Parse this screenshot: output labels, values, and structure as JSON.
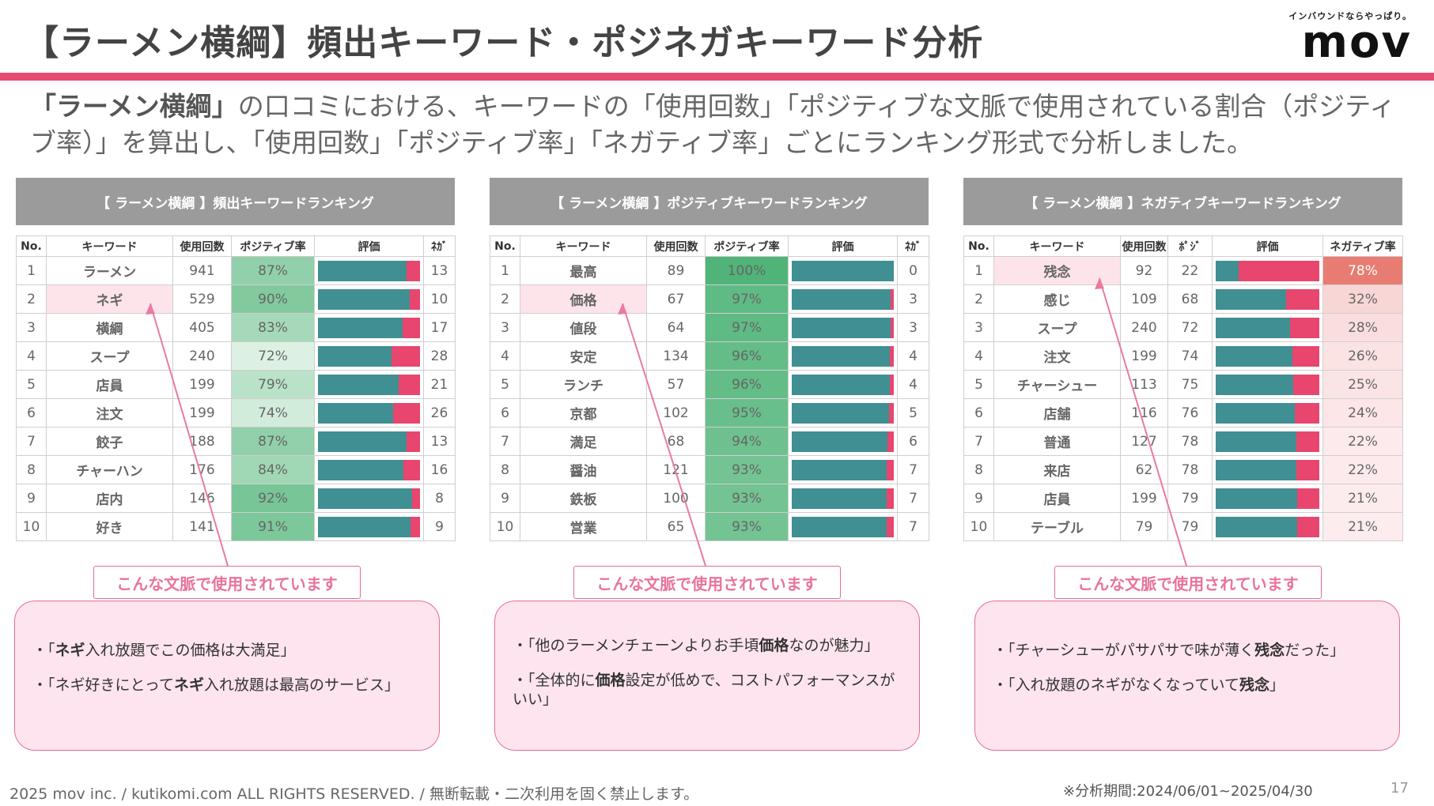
{
  "header": {
    "title": "【ラーメン横綱】頻出キーワード・ポジネガキーワード分析",
    "logo_tagline": "インバウンドならやっぱり。",
    "logo": "mov"
  },
  "lead": {
    "bold": "「ラーメン横綱」",
    "text": "の口コミにおける、キーワードの「使用回数」「ポジティブな文脈で使用されている割合（ポジティブ率）」を算出し、「使用回数」「ポジティブ率」「ネガティブ率」ごとにランキング形式で分析しました。"
  },
  "tables": [
    {
      "title": "【 ラーメン横綱 】頻出キーワードランキング",
      "columns": [
        "No.",
        "キーワード",
        "使用回数",
        "ポジティブ率",
        "評価",
        "ﾈｶﾞ"
      ],
      "rows": [
        {
          "no": "1",
          "kw": "ラーメン",
          "count": "941",
          "rate": "87%",
          "side": "13",
          "pos": 87
        },
        {
          "no": "2",
          "kw": "ネギ",
          "count": "529",
          "rate": "90%",
          "side": "10",
          "pos": 90
        },
        {
          "no": "3",
          "kw": "横綱",
          "count": "405",
          "rate": "83%",
          "side": "17",
          "pos": 83
        },
        {
          "no": "4",
          "kw": "スープ",
          "count": "240",
          "rate": "72%",
          "side": "28",
          "pos": 72
        },
        {
          "no": "5",
          "kw": "店員",
          "count": "199",
          "rate": "79%",
          "side": "21",
          "pos": 79
        },
        {
          "no": "6",
          "kw": "注文",
          "count": "199",
          "rate": "74%",
          "side": "26",
          "pos": 74
        },
        {
          "no": "7",
          "kw": "餃子",
          "count": "188",
          "rate": "87%",
          "side": "13",
          "pos": 87
        },
        {
          "no": "8",
          "kw": "チャーハン",
          "count": "176",
          "rate": "84%",
          "side": "16",
          "pos": 84
        },
        {
          "no": "9",
          "kw": "店内",
          "count": "146",
          "rate": "92%",
          "side": "8",
          "pos": 92
        },
        {
          "no": "10",
          "kw": "好き",
          "count": "141",
          "rate": "91%",
          "side": "9",
          "pos": 91
        }
      ],
      "context_label": "こんな文脈で使用されています",
      "context": [
        {
          "pre": "・「",
          "bold": "ネギ",
          "post": "入れ放題でこの価格は大満足」"
        },
        {
          "pre": "・「ネギ好きにとって",
          "bold": "ネギ",
          "post": "入れ放題は最高のサービス」"
        }
      ]
    },
    {
      "title": "【 ラーメン横綱 】ポジティブキーワードランキング",
      "columns": [
        "No.",
        "キーワード",
        "使用回数",
        "ポジティブ率",
        "評価",
        "ﾈｶﾞ"
      ],
      "rows": [
        {
          "no": "1",
          "kw": "最高",
          "count": "89",
          "rate": "100%",
          "side": "0",
          "pos": 100
        },
        {
          "no": "2",
          "kw": "価格",
          "count": "67",
          "rate": "97%",
          "side": "3",
          "pos": 97
        },
        {
          "no": "3",
          "kw": "値段",
          "count": "64",
          "rate": "97%",
          "side": "3",
          "pos": 97
        },
        {
          "no": "4",
          "kw": "安定",
          "count": "134",
          "rate": "96%",
          "side": "4",
          "pos": 96
        },
        {
          "no": "5",
          "kw": "ランチ",
          "count": "57",
          "rate": "96%",
          "side": "4",
          "pos": 96
        },
        {
          "no": "6",
          "kw": "京都",
          "count": "102",
          "rate": "95%",
          "side": "5",
          "pos": 95
        },
        {
          "no": "7",
          "kw": "満足",
          "count": "68",
          "rate": "94%",
          "side": "6",
          "pos": 94
        },
        {
          "no": "8",
          "kw": "醤油",
          "count": "121",
          "rate": "93%",
          "side": "7",
          "pos": 93
        },
        {
          "no": "9",
          "kw": "鉄板",
          "count": "100",
          "rate": "93%",
          "side": "7",
          "pos": 93
        },
        {
          "no": "10",
          "kw": "営業",
          "count": "65",
          "rate": "93%",
          "side": "7",
          "pos": 93
        }
      ],
      "context_label": "こんな文脈で使用されています",
      "context": [
        {
          "pre": "・「他のラーメンチェーンよりお手頃",
          "bold": "価格",
          "post": "なのが魅力」"
        },
        {
          "pre": "・「全体的に",
          "bold": "価格",
          "post": "設定が低めで、コストパフォーマンスがいい」"
        }
      ]
    },
    {
      "title": "【 ラーメン横綱 】ネガティブキーワードランキング",
      "columns": [
        "No.",
        "キーワード",
        "使用回数",
        "ﾎﾟｼﾞ",
        "評価",
        "ネガティブ率"
      ],
      "rows": [
        {
          "no": "1",
          "kw": "残念",
          "count": "92",
          "rate": "78%",
          "side": "22",
          "pos": 22
        },
        {
          "no": "2",
          "kw": "感じ",
          "count": "109",
          "rate": "32%",
          "side": "68",
          "pos": 68
        },
        {
          "no": "3",
          "kw": "スープ",
          "count": "240",
          "rate": "28%",
          "side": "72",
          "pos": 72
        },
        {
          "no": "4",
          "kw": "注文",
          "count": "199",
          "rate": "26%",
          "side": "74",
          "pos": 74
        },
        {
          "no": "5",
          "kw": "チャーシュー",
          "count": "113",
          "rate": "25%",
          "side": "75",
          "pos": 75
        },
        {
          "no": "6",
          "kw": "店舗",
          "count": "116",
          "rate": "24%",
          "side": "76",
          "pos": 76
        },
        {
          "no": "7",
          "kw": "普通",
          "count": "127",
          "rate": "22%",
          "side": "78",
          "pos": 78
        },
        {
          "no": "8",
          "kw": "来店",
          "count": "62",
          "rate": "22%",
          "side": "78",
          "pos": 78
        },
        {
          "no": "9",
          "kw": "店員",
          "count": "199",
          "rate": "21%",
          "side": "79",
          "pos": 79
        },
        {
          "no": "10",
          "kw": "テーブル",
          "count": "79",
          "rate": "21%",
          "side": "79",
          "pos": 79
        }
      ],
      "context_label": "こんな文脈で使用されています",
      "context": [
        {
          "pre": "・「チャーシューがパサパサで味が薄く",
          "bold": "残念",
          "post": "だった」"
        },
        {
          "pre": "・「入れ放題のネギがなくなっていて",
          "bold": "残念",
          "post": "」"
        }
      ]
    }
  ],
  "footer": {
    "copyright": "2025 mov inc. / kutikomi.com ALL RIGHTS RESERVED. / 無断転載・二次利用を固く禁止します。",
    "period": "※分析期間:2024/06/01~2025/04/30",
    "page": "17"
  },
  "colors": {
    "accent": "#e84a6f",
    "bar_positive": "#3f8f93",
    "bar_negative": "#e8466f",
    "highlight": "#fde4ea",
    "context_bg": "#fde4ee"
  }
}
